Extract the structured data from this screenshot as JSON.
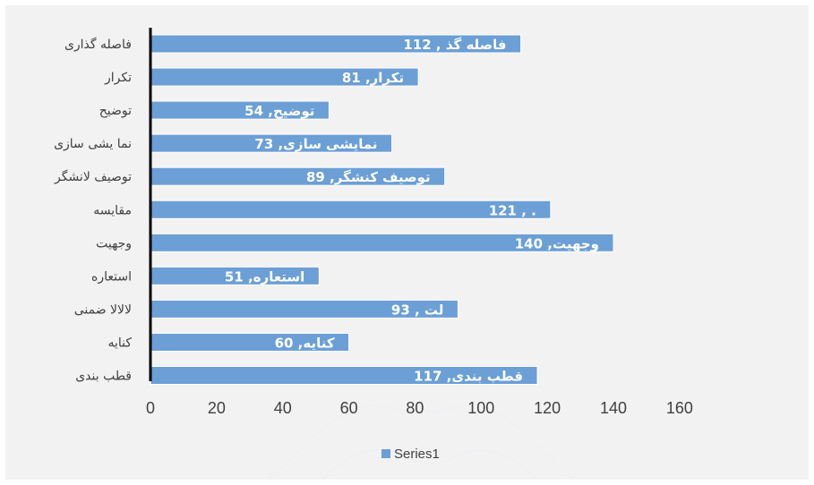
{
  "chart_data": {
    "type": "bar",
    "orientation": "horizontal",
    "categories": [
      "فاصله گذاری",
      "تکرار",
      "توضیح",
      "نما یشی سازی",
      "توصیف لانشگر",
      "مقایسه",
      "وجهیت",
      "استعاره",
      "لالالا ضمنی",
      "کنایه",
      "قطب بندی"
    ],
    "series": [
      {
        "name": "Series1",
        "values": [
          112,
          81,
          54,
          73,
          89,
          121,
          140,
          51,
          93,
          60,
          117
        ],
        "data_labels": [
          "فاصله گذ , 112",
          "تکرار, 81",
          "توضیح, 54",
          "نمایشی سازی, 73",
          "توصیف کنشگر, 89",
          "121 , .",
          "وجهیت, 140",
          "استعاره, 51",
          "93 , لت",
          "کنایه, 60",
          "قطب بندی, 117"
        ]
      }
    ],
    "x_ticks": [
      "0",
      "20",
      "40",
      "60",
      "80",
      "100",
      "120",
      "140",
      "160"
    ],
    "xlim": [
      0,
      160
    ],
    "grid": false,
    "legend": "bottom",
    "colors": {
      "bar": "#6b9fd6",
      "bar_edge": "#ffffff",
      "plot_bg": "#f2f2f2",
      "text": "#404040",
      "axis": "#000000",
      "label_text": "#ffffff"
    }
  }
}
